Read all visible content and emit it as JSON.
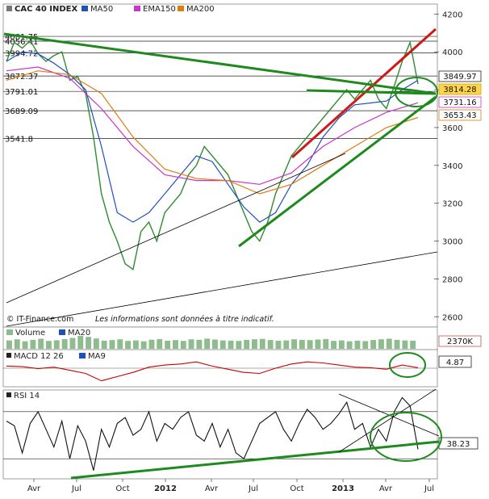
{
  "chart_data": [
    {
      "panel": "price",
      "type": "line",
      "title": "CAC 40 INDEX",
      "legend": [
        {
          "name": "MA50",
          "color": "#1f4fbf"
        },
        {
          "name": "EMA150",
          "color": "#cc33cc"
        },
        {
          "name": "MA200",
          "color": "#e07b10"
        }
      ],
      "x_ticks": [
        "Avr",
        "Jul",
        "Oct",
        "2012",
        "Avr",
        "Jul",
        "Oct",
        "2013",
        "Avr",
        "Jul"
      ],
      "y_ticks": [
        "4200",
        "4000",
        "3800",
        "3600",
        "3400",
        "3200",
        "3000",
        "2800",
        "2600"
      ],
      "ylim": [
        2550,
        4240
      ],
      "levels": [
        "4081.75",
        "4056.41",
        "3994.72",
        "3872.37",
        "3791.01",
        "3689.09",
        "3541.8"
      ],
      "right_badges": [
        {
          "text": "3849.97",
          "color": "#222222"
        },
        {
          "text": "3814.28",
          "color": "#e0a000"
        },
        {
          "text": "3731.16",
          "color": "#cc33cc"
        },
        {
          "text": "3653.43",
          "color": "#e07b10"
        }
      ],
      "credit": "© IT-Finance.com",
      "disclaimer": "Les informations sont données à titre indicatif.",
      "series": [
        {
          "name": "CAC 40 INDEX",
          "color": "#2e8b2e",
          "x": [
            0,
            5,
            10,
            15,
            20,
            25,
            30,
            35,
            40,
            45,
            50,
            55,
            60,
            65,
            70,
            75,
            80,
            85,
            90,
            95,
            100,
            105,
            110,
            115,
            120,
            125,
            130,
            135,
            140,
            145,
            150,
            155,
            160,
            165,
            170,
            175,
            180,
            185,
            190,
            195,
            200,
            205,
            210,
            215,
            220,
            225,
            230,
            235,
            240,
            245,
            250,
            255,
            260
          ],
          "y": [
            3950,
            4050,
            4020,
            4060,
            3990,
            3950,
            3980,
            4000,
            3850,
            3870,
            3780,
            3550,
            3250,
            3100,
            3000,
            2880,
            2850,
            3050,
            3100,
            3000,
            3150,
            3200,
            3250,
            3350,
            3400,
            3500,
            3450,
            3400,
            3350,
            3250,
            3150,
            3050,
            3000,
            3100,
            3250,
            3350,
            3450,
            3500,
            3550,
            3600,
            3650,
            3700,
            3750,
            3800,
            3750,
            3800,
            3850,
            3750,
            3700,
            3820,
            3950,
            4050,
            3830
          ]
        },
        {
          "name": "MA50",
          "color": "#1f4fbf",
          "x": [
            0,
            10,
            20,
            30,
            40,
            50,
            60,
            70,
            80,
            90,
            100,
            110,
            120,
            130,
            140,
            150,
            160,
            170,
            180,
            190,
            200,
            210,
            220,
            230,
            240,
            250,
            260
          ],
          "y": [
            3950,
            4000,
            3990,
            3940,
            3880,
            3800,
            3500,
            3150,
            3100,
            3150,
            3250,
            3350,
            3450,
            3420,
            3300,
            3180,
            3100,
            3150,
            3300,
            3400,
            3550,
            3650,
            3720,
            3730,
            3740,
            3800,
            3850
          ]
        },
        {
          "name": "EMA150",
          "color": "#cc33cc",
          "x": [
            0,
            20,
            40,
            60,
            80,
            100,
            120,
            140,
            160,
            180,
            200,
            220,
            240,
            260
          ],
          "y": [
            3900,
            3920,
            3860,
            3700,
            3500,
            3350,
            3320,
            3320,
            3300,
            3360,
            3500,
            3600,
            3680,
            3731
          ]
        },
        {
          "name": "MA200",
          "color": "#e07b10",
          "x": [
            0,
            20,
            40,
            60,
            80,
            100,
            120,
            140,
            160,
            180,
            200,
            220,
            240,
            260
          ],
          "y": [
            3850,
            3900,
            3880,
            3780,
            3550,
            3380,
            3330,
            3320,
            3250,
            3300,
            3400,
            3500,
            3600,
            3653
          ]
        }
      ]
    },
    {
      "panel": "volume",
      "type": "bar",
      "legend": [
        {
          "name": "Volume",
          "color": "#8fbc8f"
        },
        {
          "name": "MA20",
          "color": "#1f4fbf"
        }
      ],
      "badge": "2370K",
      "values": [
        62,
        70,
        55,
        66,
        74,
        58,
        63,
        71,
        80,
        95,
        88,
        76,
        60,
        65,
        70,
        58,
        62,
        55,
        67,
        72,
        60,
        64,
        58,
        70,
        66,
        75,
        68,
        62,
        60,
        58,
        66,
        70,
        73,
        65,
        60,
        62,
        70,
        66,
        64,
        68,
        72,
        58,
        62,
        55,
        60,
        57,
        65,
        70,
        74,
        66,
        62,
        60
      ]
    },
    {
      "panel": "macd",
      "type": "line",
      "legend": [
        {
          "name": "MACD 12 26",
          "color": "#cc0000"
        },
        {
          "name": "MA9",
          "color": "#1f4fbf"
        }
      ],
      "badge": "4.87",
      "x": [
        0,
        10,
        20,
        30,
        40,
        50,
        60,
        70,
        80,
        90,
        100,
        110,
        120,
        130,
        140,
        150,
        160,
        170,
        180,
        190,
        200,
        210,
        220,
        230,
        240,
        250,
        260
      ],
      "values": [
        20,
        15,
        -5,
        10,
        -20,
        -50,
        -120,
        -80,
        -40,
        10,
        30,
        40,
        60,
        20,
        -10,
        -40,
        -50,
        0,
        40,
        60,
        50,
        30,
        10,
        5,
        -10,
        30,
        5
      ]
    },
    {
      "panel": "rsi",
      "type": "line",
      "legend": [
        {
          "name": "RSI 14",
          "color": "#111111"
        }
      ],
      "badge": "38.23",
      "ylim": [
        15,
        85
      ],
      "x": [
        0,
        5,
        10,
        15,
        20,
        25,
        30,
        35,
        40,
        45,
        50,
        55,
        60,
        65,
        70,
        75,
        80,
        85,
        90,
        95,
        100,
        105,
        110,
        115,
        120,
        125,
        130,
        135,
        140,
        145,
        150,
        155,
        160,
        165,
        170,
        175,
        180,
        185,
        190,
        195,
        200,
        205,
        210,
        215,
        220,
        225,
        230,
        235,
        240,
        245,
        250,
        255,
        260
      ],
      "values": [
        62,
        58,
        35,
        60,
        70,
        55,
        40,
        62,
        30,
        58,
        45,
        20,
        55,
        40,
        60,
        65,
        50,
        55,
        70,
        45,
        60,
        55,
        65,
        70,
        50,
        45,
        60,
        40,
        55,
        35,
        30,
        45,
        60,
        65,
        70,
        55,
        45,
        60,
        72,
        65,
        55,
        60,
        68,
        78,
        55,
        60,
        40,
        55,
        45,
        70,
        82,
        75,
        38
      ]
    }
  ]
}
